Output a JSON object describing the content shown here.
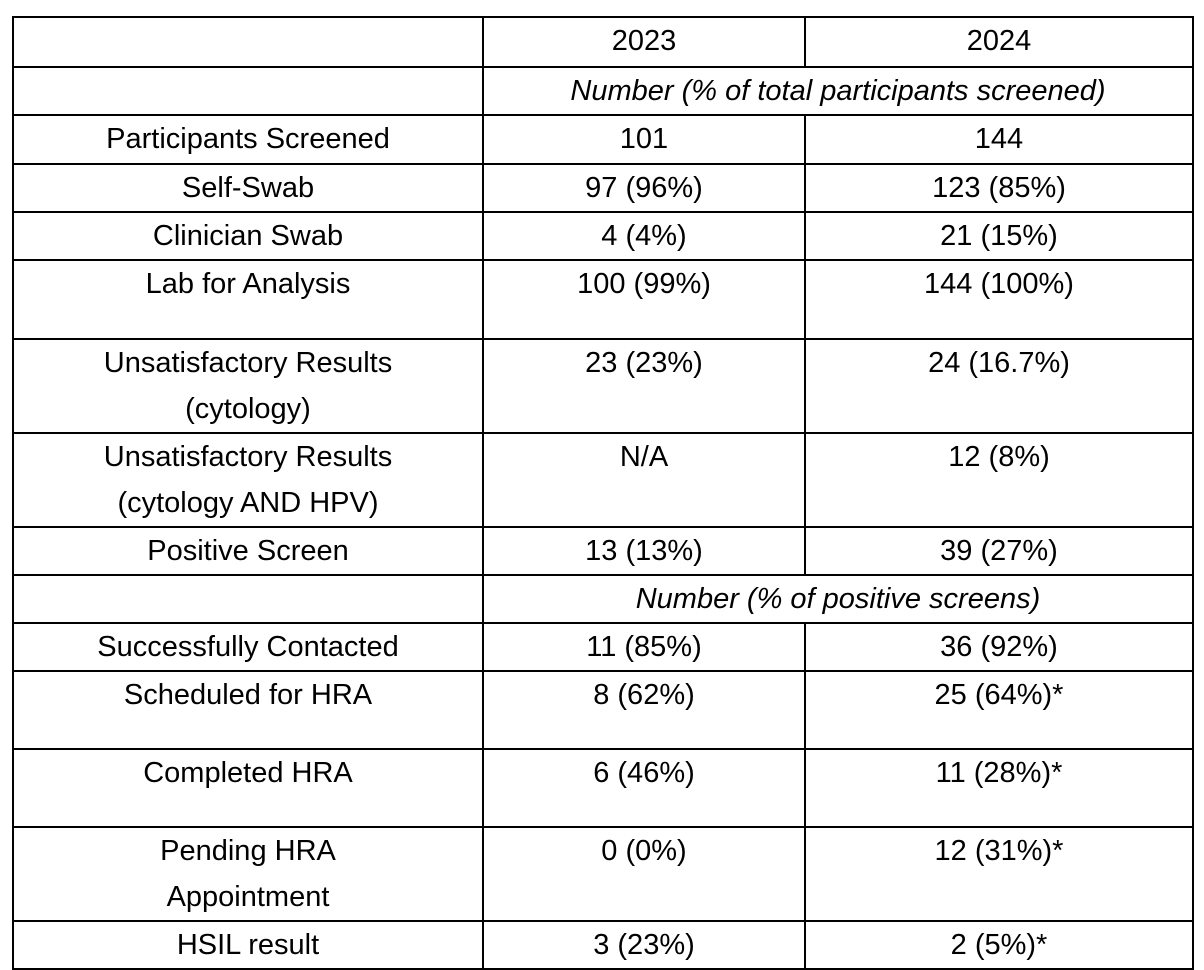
{
  "table": {
    "years": [
      "2023",
      "2024"
    ],
    "subheader_total": "Number (% of total participants screened)",
    "subheader_positive": "Number (% of positive screens)",
    "section_total": [
      {
        "label": [
          "Participants Screened"
        ],
        "v2023": "101",
        "v2024": "144"
      },
      {
        "label": [
          "Self-Swab"
        ],
        "v2023": "97 (96%)",
        "v2024": "123 (85%)"
      },
      {
        "label": [
          "Clinician Swab"
        ],
        "v2023": "4 (4%)",
        "v2024": "21 (15%)"
      },
      {
        "label": [
          "Lab for Analysis"
        ],
        "v2023": "100 (99%)",
        "v2024": "144 (100%)"
      },
      {
        "label": [
          "Unsatisfactory Results",
          "(cytology)"
        ],
        "v2023": "23 (23%)",
        "v2024": "24 (16.7%)"
      },
      {
        "label": [
          "Unsatisfactory Results",
          "(cytology AND HPV)"
        ],
        "v2023": "N/A",
        "v2024": "12 (8%)"
      },
      {
        "label": [
          "Positive Screen"
        ],
        "v2023": "13 (13%)",
        "v2024": "39 (27%)"
      }
    ],
    "section_positive": [
      {
        "label": [
          "Successfully Contacted"
        ],
        "v2023": "11 (85%)",
        "v2024": "36 (92%)"
      },
      {
        "label": [
          "Scheduled for HRA"
        ],
        "v2023": "8 (62%)",
        "v2024": "25 (64%)*"
      },
      {
        "label": [
          "Completed HRA"
        ],
        "v2023": "6 (46%)",
        "v2024": "11 (28%)*"
      },
      {
        "label": [
          "Pending HRA",
          "Appointment"
        ],
        "v2023": "0 (0%)",
        "v2024": "12 (31%)*"
      },
      {
        "label": [
          "HSIL result"
        ],
        "v2023": "3 (23%)",
        "v2024": "2 (5%)*"
      }
    ]
  }
}
